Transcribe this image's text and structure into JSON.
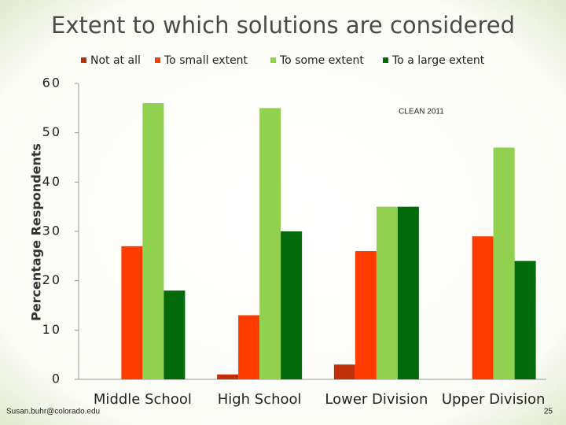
{
  "chart_data": {
    "type": "bar",
    "title": "Extent to which solutions are considered",
    "y_label": "Percentage Respondents",
    "annotation": "CLEAN 2011",
    "categories": [
      "Middle School",
      "High School",
      "Lower Division",
      "Upper Division"
    ],
    "series": [
      {
        "name": "Not at all",
        "color": "#c0300a",
        "values": [
          0,
          1,
          3,
          0
        ]
      },
      {
        "name": "To small extent",
        "color": "#ff3c00",
        "values": [
          27,
          13,
          26,
          29
        ]
      },
      {
        "name": "To some extent",
        "color": "#92d050",
        "values": [
          56,
          55,
          35,
          47
        ]
      },
      {
        "name": "To a large extent",
        "color": "#036a0c",
        "values": [
          18,
          30,
          35,
          24
        ]
      }
    ],
    "ylim": [
      0,
      60
    ],
    "yticks": [
      0,
      10,
      20,
      30,
      40,
      50,
      60
    ],
    "grid": false,
    "legend": "top"
  },
  "footer": {
    "author": "Susan.buhr@colorado.edu",
    "page": "25"
  }
}
